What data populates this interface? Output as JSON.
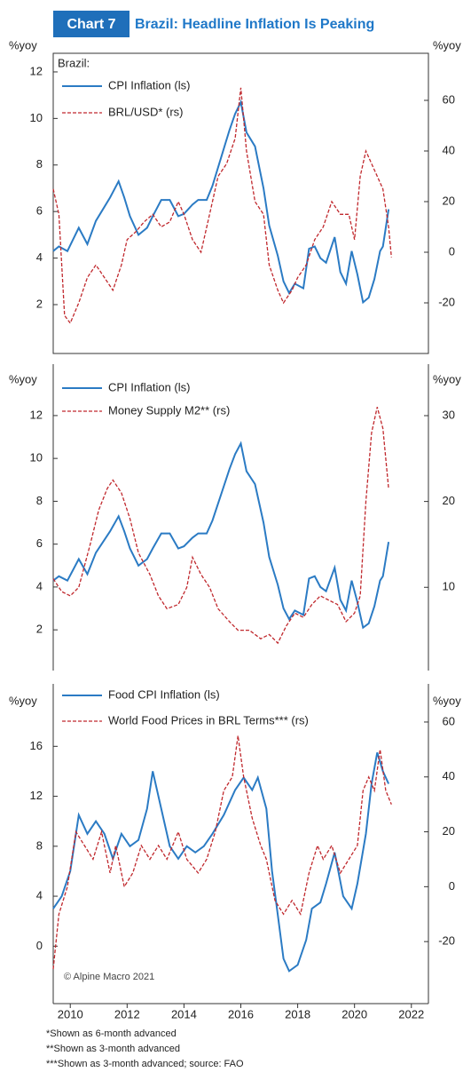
{
  "header": {
    "badge": "Chart 7",
    "title": "Brazil: Headline Inflation Is Peaking"
  },
  "chart_data": [
    {
      "type": "line",
      "annotation": "Brazil:",
      "ylabel": "%yoy",
      "y2label": "%yoy",
      "xlim": [
        2009.4,
        2022.6
      ],
      "ylim": [
        -0.1,
        12.8
      ],
      "yticks": [
        2,
        4,
        6,
        8,
        10,
        12
      ],
      "y2lim": [
        -40,
        78.6
      ],
      "y2ticks": [
        -20,
        0,
        20,
        40,
        60
      ],
      "series": [
        {
          "name": "CPI Inflation (ls)",
          "color": "#2b7bc4",
          "linestyle": "solid",
          "x": [
            2009.4,
            2009.6,
            2009.9,
            2010.1,
            2010.3,
            2010.6,
            2010.9,
            2011.1,
            2011.4,
            2011.7,
            2011.9,
            2012.1,
            2012.4,
            2012.7,
            2012.9,
            2013.2,
            2013.5,
            2013.8,
            2014.0,
            2014.3,
            2014.5,
            2014.8,
            2015.0,
            2015.3,
            2015.6,
            2015.8,
            2016.0,
            2016.2,
            2016.5,
            2016.8,
            2017.0,
            2017.3,
            2017.5,
            2017.7,
            2017.9,
            2018.2,
            2018.4,
            2018.6,
            2018.8,
            2019.0,
            2019.3,
            2019.5,
            2019.7,
            2019.9,
            2020.1,
            2020.3,
            2020.5,
            2020.7,
            2020.9,
            2021.0,
            2021.2
          ],
          "values": [
            4.3,
            4.5,
            4.3,
            4.8,
            5.3,
            4.6,
            5.6,
            6.0,
            6.6,
            7.3,
            6.6,
            5.8,
            5.0,
            5.3,
            5.8,
            6.5,
            6.5,
            5.8,
            5.9,
            6.3,
            6.5,
            6.5,
            7.1,
            8.3,
            9.5,
            10.2,
            10.7,
            9.4,
            8.8,
            7.0,
            5.4,
            4.1,
            3.0,
            2.5,
            2.9,
            2.7,
            4.4,
            4.5,
            4.0,
            3.8,
            4.9,
            3.4,
            2.9,
            4.3,
            3.3,
            2.1,
            2.3,
            3.1,
            4.3,
            4.5,
            6.1
          ]
        },
        {
          "name": "BRL/USD* (rs)",
          "color": "#c0282d",
          "linestyle": "dashed",
          "axis": "y2",
          "x": [
            2009.4,
            2009.6,
            2009.8,
            2010.0,
            2010.3,
            2010.6,
            2010.9,
            2011.2,
            2011.5,
            2011.8,
            2012.0,
            2012.3,
            2012.6,
            2012.9,
            2013.2,
            2013.5,
            2013.8,
            2014.0,
            2014.3,
            2014.6,
            2014.9,
            2015.2,
            2015.5,
            2015.8,
            2016.0,
            2016.2,
            2016.5,
            2016.8,
            2017.0,
            2017.3,
            2017.5,
            2017.8,
            2018.0,
            2018.3,
            2018.6,
            2018.9,
            2019.2,
            2019.5,
            2019.8,
            2020.0,
            2020.2,
            2020.4,
            2020.6,
            2020.8,
            2021.0,
            2021.2,
            2021.3
          ],
          "values": [
            25,
            15,
            -25,
            -28,
            -20,
            -10,
            -5,
            -10,
            -15,
            -5,
            5,
            8,
            12,
            15,
            10,
            12,
            20,
            15,
            5,
            0,
            15,
            30,
            35,
            45,
            65,
            40,
            20,
            15,
            -5,
            -15,
            -20,
            -15,
            -10,
            -5,
            5,
            10,
            20,
            15,
            15,
            5,
            30,
            40,
            35,
            30,
            25,
            10,
            -2
          ]
        }
      ]
    },
    {
      "type": "line",
      "ylabel": "%yoy",
      "y2label": "%yoy",
      "xlim": [
        2009.4,
        2022.6
      ],
      "ylim": [
        0.1,
        14.4
      ],
      "yticks": [
        2,
        4,
        6,
        8,
        10,
        12
      ],
      "y2lim": [
        0.3,
        36
      ],
      "y2ticks": [
        10,
        20,
        30
      ],
      "series": [
        {
          "name": "CPI Inflation (ls)",
          "color": "#2b7bc4",
          "linestyle": "solid",
          "x": [
            2009.4,
            2009.6,
            2009.9,
            2010.1,
            2010.3,
            2010.6,
            2010.9,
            2011.1,
            2011.4,
            2011.7,
            2011.9,
            2012.1,
            2012.4,
            2012.7,
            2012.9,
            2013.2,
            2013.5,
            2013.8,
            2014.0,
            2014.3,
            2014.5,
            2014.8,
            2015.0,
            2015.3,
            2015.6,
            2015.8,
            2016.0,
            2016.2,
            2016.5,
            2016.8,
            2017.0,
            2017.3,
            2017.5,
            2017.7,
            2017.9,
            2018.2,
            2018.4,
            2018.6,
            2018.8,
            2019.0,
            2019.3,
            2019.5,
            2019.7,
            2019.9,
            2020.1,
            2020.3,
            2020.5,
            2020.7,
            2020.9,
            2021.0,
            2021.2
          ],
          "values": [
            4.3,
            4.5,
            4.3,
            4.8,
            5.3,
            4.6,
            5.6,
            6.0,
            6.6,
            7.3,
            6.6,
            5.8,
            5.0,
            5.3,
            5.8,
            6.5,
            6.5,
            5.8,
            5.9,
            6.3,
            6.5,
            6.5,
            7.1,
            8.3,
            9.5,
            10.2,
            10.7,
            9.4,
            8.8,
            7.0,
            5.4,
            4.1,
            3.0,
            2.5,
            2.9,
            2.7,
            4.4,
            4.5,
            4.0,
            3.8,
            4.9,
            3.4,
            2.9,
            4.3,
            3.3,
            2.1,
            2.3,
            3.1,
            4.3,
            4.5,
            6.1
          ]
        },
        {
          "name": "Money Supply M2** (rs)",
          "color": "#c0282d",
          "linestyle": "dashed",
          "axis": "y2",
          "x": [
            2009.4,
            2009.7,
            2010.0,
            2010.3,
            2010.7,
            2011.0,
            2011.3,
            2011.5,
            2011.8,
            2012.1,
            2012.4,
            2012.8,
            2013.1,
            2013.4,
            2013.8,
            2014.1,
            2014.3,
            2014.6,
            2014.9,
            2015.2,
            2015.6,
            2015.9,
            2016.3,
            2016.7,
            2017.0,
            2017.3,
            2017.6,
            2017.9,
            2018.2,
            2018.5,
            2018.8,
            2019.1,
            2019.4,
            2019.7,
            2020.0,
            2020.2,
            2020.4,
            2020.6,
            2020.8,
            2021.0,
            2021.2
          ],
          "values": [
            11,
            9.5,
            9,
            10,
            15,
            19,
            21.5,
            22.5,
            21,
            18,
            14,
            11.5,
            9,
            7.5,
            8,
            10,
            13.5,
            11.5,
            10,
            7.5,
            6,
            5,
            5,
            4,
            4.5,
            3.5,
            5.5,
            7,
            6.5,
            8,
            9,
            8.5,
            8,
            6,
            7,
            9,
            20,
            28,
            31,
            28.5,
            21.5
          ]
        }
      ]
    },
    {
      "type": "line",
      "annotation": "© Alpine Macro 2021",
      "ylabel": "%yoy",
      "y2label": "%yoy",
      "xlim": [
        2009.4,
        2022.6
      ],
      "xticks": [
        2010,
        2012,
        2014,
        2016,
        2018,
        2020,
        2022
      ],
      "ylim": [
        -4.6,
        21
      ],
      "yticks": [
        0,
        4,
        8,
        12,
        16
      ],
      "y2lim": [
        -42.6,
        73.9
      ],
      "y2ticks": [
        -20,
        0,
        20,
        40,
        60
      ],
      "series": [
        {
          "name": "Food CPI Inflation (ls)",
          "color": "#2b7bc4",
          "linestyle": "solid",
          "x": [
            2009.4,
            2009.7,
            2010.0,
            2010.3,
            2010.6,
            2010.9,
            2011.2,
            2011.5,
            2011.8,
            2012.1,
            2012.4,
            2012.7,
            2012.9,
            2013.2,
            2013.5,
            2013.8,
            2014.1,
            2014.4,
            2014.7,
            2015.0,
            2015.4,
            2015.8,
            2016.1,
            2016.4,
            2016.6,
            2016.9,
            2017.1,
            2017.3,
            2017.5,
            2017.7,
            2018.0,
            2018.3,
            2018.5,
            2018.8,
            2019.0,
            2019.3,
            2019.6,
            2019.9,
            2020.1,
            2020.4,
            2020.6,
            2020.8,
            2021.0,
            2021.2
          ],
          "values": [
            3,
            4,
            6,
            10.5,
            9,
            10,
            9,
            7,
            9,
            8,
            8.5,
            11,
            14,
            11,
            8,
            7,
            8,
            7.5,
            8,
            9,
            10.5,
            12.5,
            13.5,
            12.5,
            13.5,
            11,
            6,
            2.5,
            -1,
            -2,
            -1.5,
            0.5,
            3,
            3.5,
            5,
            7.5,
            4,
            3,
            5,
            9,
            13,
            15.5,
            14,
            13
          ]
        },
        {
          "name": "World Food Prices in BRL Terms*** (rs)",
          "color": "#c0282d",
          "linestyle": "dashed",
          "axis": "y2",
          "x": [
            2009.4,
            2009.6,
            2009.9,
            2010.2,
            2010.5,
            2010.8,
            2011.1,
            2011.4,
            2011.6,
            2011.9,
            2012.2,
            2012.5,
            2012.8,
            2013.1,
            2013.4,
            2013.8,
            2014.1,
            2014.5,
            2014.8,
            2015.1,
            2015.4,
            2015.7,
            2015.9,
            2016.1,
            2016.4,
            2016.7,
            2016.9,
            2017.2,
            2017.5,
            2017.8,
            2018.1,
            2018.4,
            2018.7,
            2018.9,
            2019.2,
            2019.5,
            2019.8,
            2020.1,
            2020.3,
            2020.5,
            2020.7,
            2020.9,
            2021.1,
            2021.3
          ],
          "values": [
            -30,
            -10,
            0,
            20,
            15,
            10,
            20,
            5,
            15,
            0,
            5,
            15,
            10,
            15,
            10,
            20,
            10,
            5,
            10,
            20,
            35,
            40,
            55,
            40,
            25,
            15,
            10,
            -5,
            -10,
            -5,
            -10,
            5,
            15,
            10,
            15,
            5,
            10,
            15,
            35,
            40,
            35,
            50,
            35,
            30
          ]
        }
      ]
    }
  ],
  "footnotes": [
    "*Shown as 6-month advanced",
    "**Shown as 3-month advanced",
    "***Shown as 3-month advanced; source: FAO"
  ]
}
